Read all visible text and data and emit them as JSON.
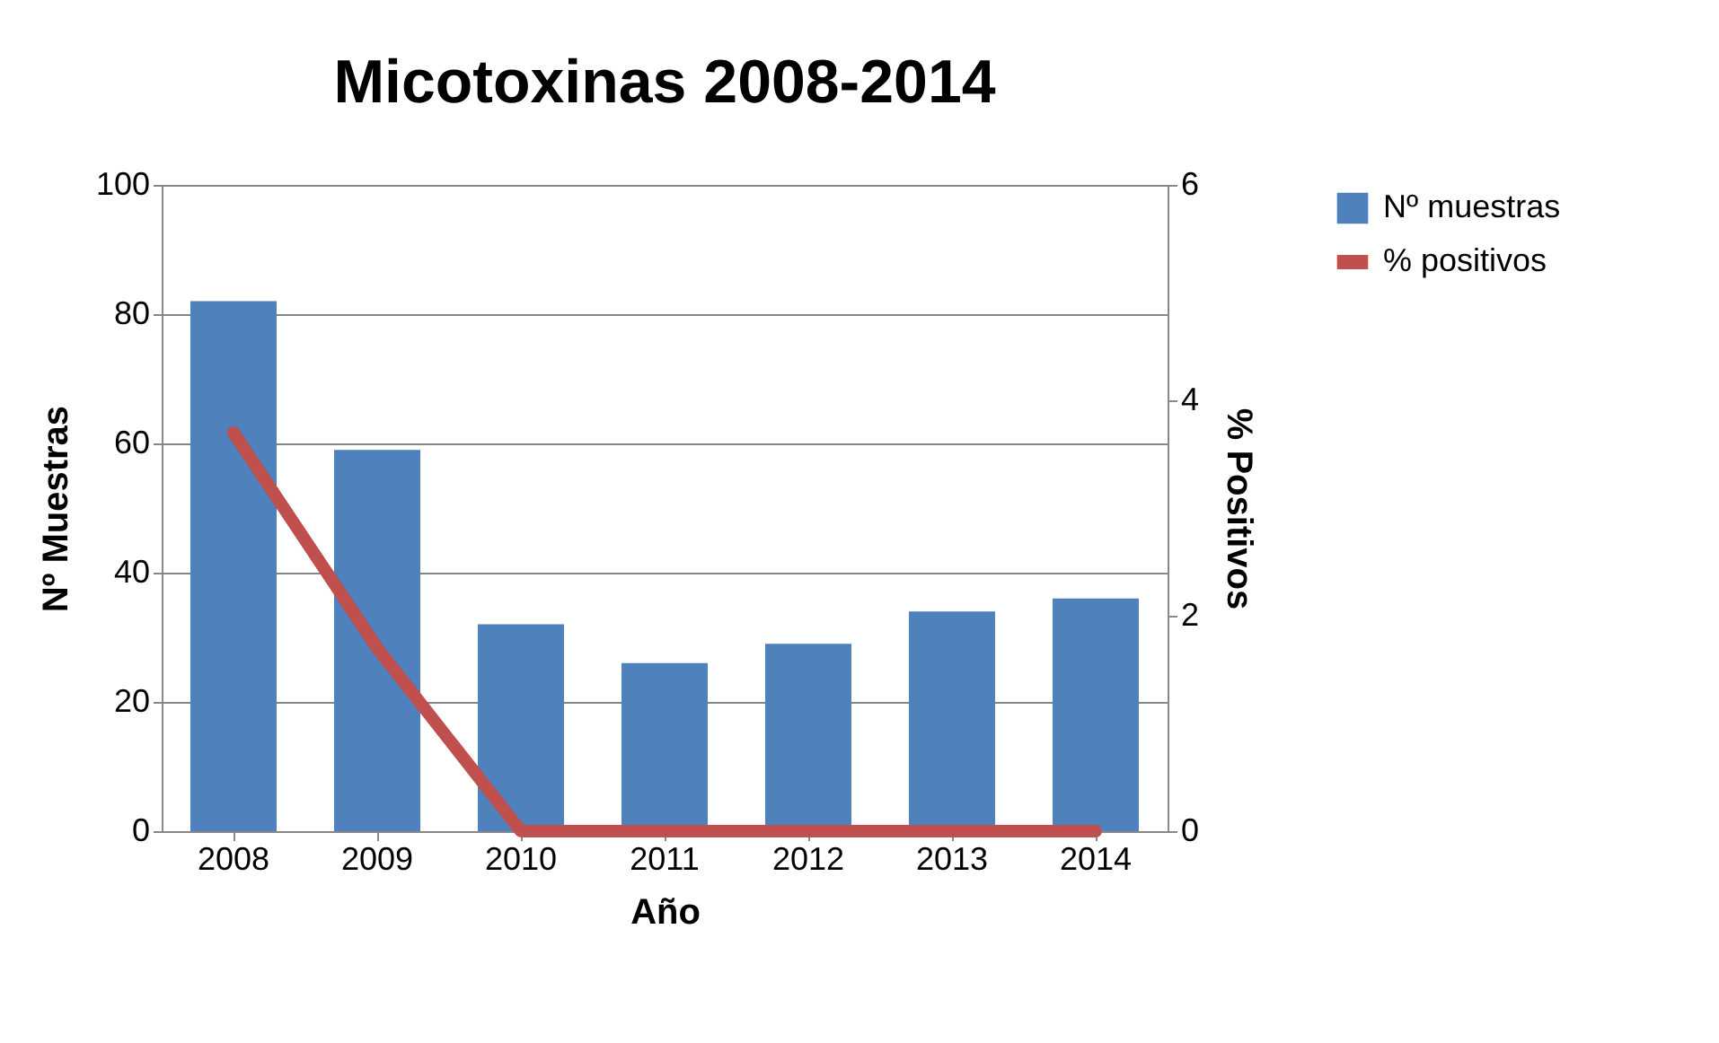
{
  "chart_data": {
    "type": "bar",
    "title": "Micotoxinas 2008-2014",
    "xlabel": "Año",
    "ylabel": "Nº Muestras",
    "y2label": "% Positivos",
    "categories": [
      "2008",
      "2009",
      "2010",
      "2011",
      "2012",
      "2013",
      "2014"
    ],
    "series": [
      {
        "name": "Nº muestras",
        "color": "#4f81bd",
        "values": [
          82,
          59,
          32,
          26,
          29,
          34,
          36
        ]
      },
      {
        "name": "% positivos",
        "type": "line",
        "axis": "y2",
        "color": "#c0504d",
        "values": [
          3.7,
          1.7,
          0,
          0,
          0,
          0,
          0
        ]
      }
    ],
    "ylim": [
      0,
      100
    ],
    "yticks": [
      0,
      20,
      40,
      60,
      80,
      100
    ],
    "y2lim": [
      0,
      6
    ],
    "y2ticks": [
      0,
      2,
      4,
      6
    ],
    "grid": "y",
    "legend": "right",
    "line_style": "solid"
  }
}
